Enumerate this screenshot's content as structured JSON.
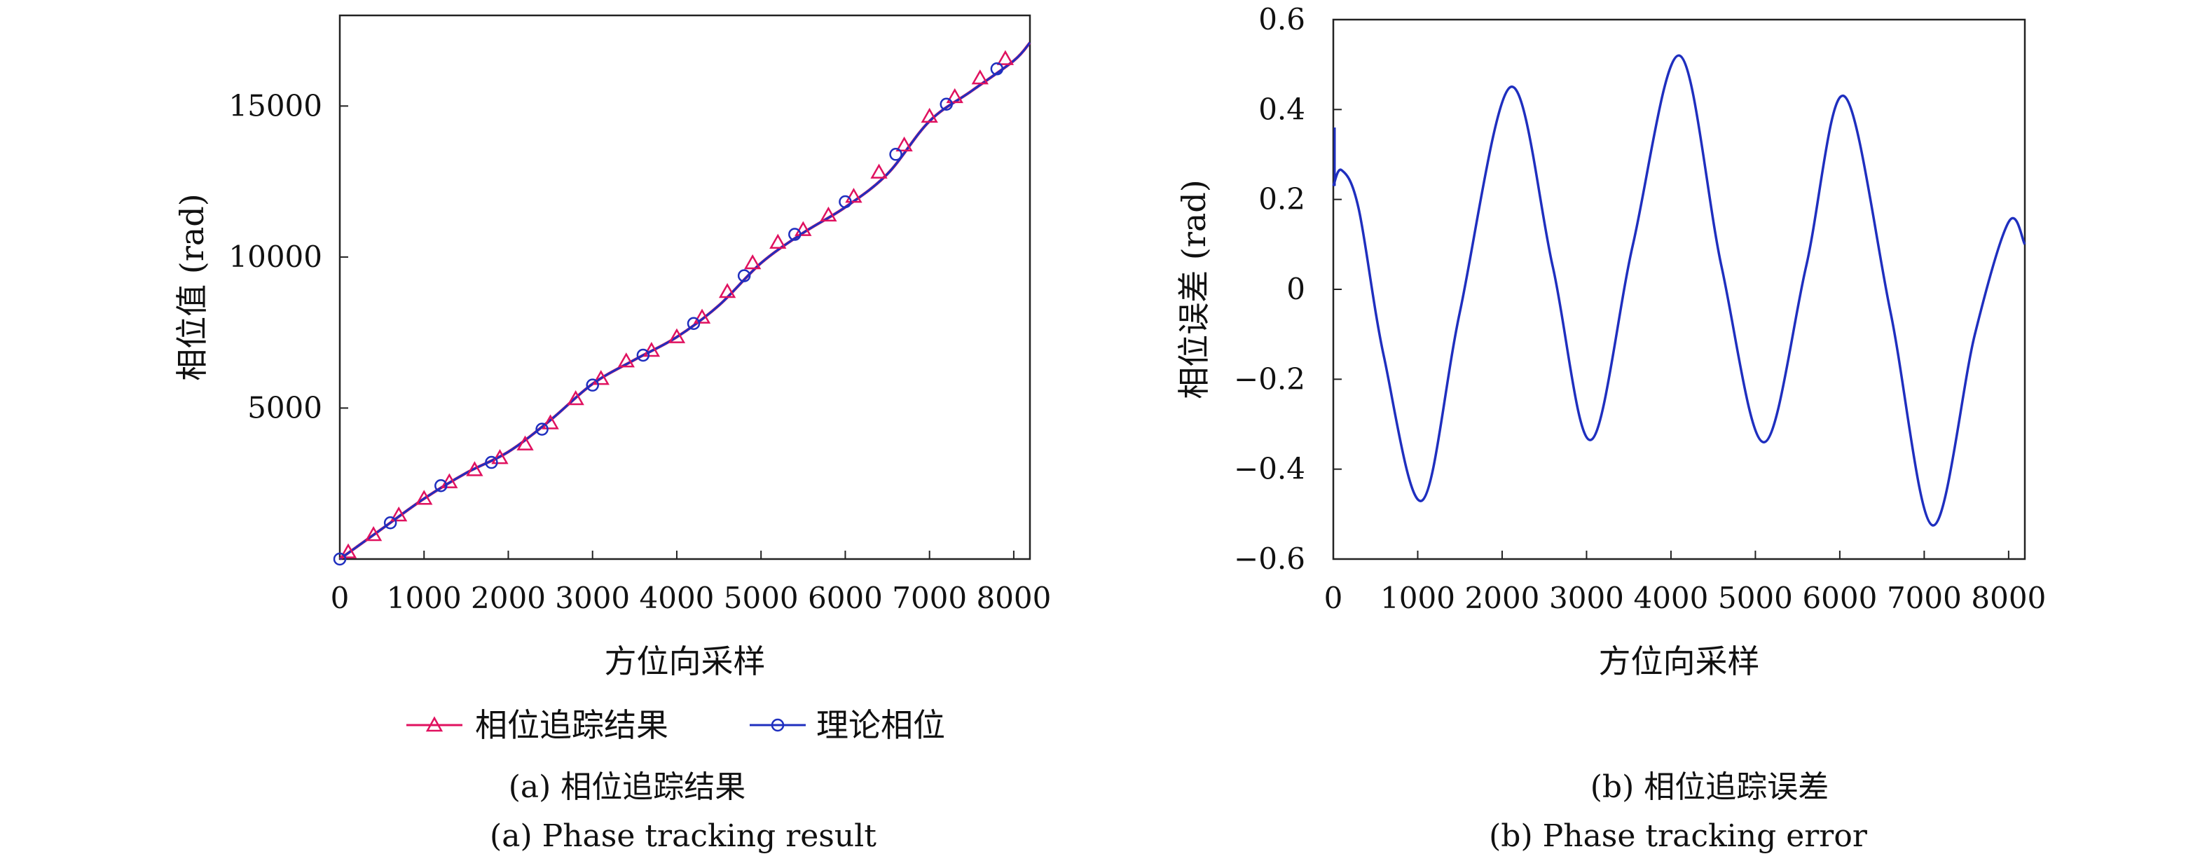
{
  "chart_data": [
    {
      "type": "line",
      "panel": "(a)",
      "xlabel": "方位向采样",
      "ylabel": "相位值 (rad)",
      "xlim": [
        0,
        8192
      ],
      "ylim": [
        0,
        18000
      ],
      "xticks": [
        0,
        1000,
        2000,
        3000,
        4000,
        5000,
        6000,
        7000,
        8000
      ],
      "xtick_labels": [
        "0",
        "1000",
        "2000",
        "3000",
        "4000",
        "5000",
        "6000",
        "7000",
        "8000"
      ],
      "yticks": [
        5000,
        10000,
        15000
      ],
      "ytick_labels": [
        "5000",
        "10000",
        "15000"
      ],
      "grid": false,
      "legend": "below",
      "series": [
        {
          "name": "相位追踪结果",
          "color": "#e0115f",
          "marker": "triangle",
          "x": [
            0,
            500,
            1000,
            1500,
            2000,
            2500,
            3000,
            3500,
            4000,
            4500,
            5000,
            5500,
            6000,
            6500,
            7000,
            7500,
            8000,
            8192
          ],
          "y": [
            0,
            1000,
            2000,
            2850,
            3550,
            4600,
            5800,
            6600,
            7350,
            8400,
            9800,
            10800,
            11650,
            12750,
            14500,
            15500,
            16500,
            17100
          ],
          "markers_x": [
            100,
            400,
            700,
            1000,
            1300,
            1600,
            1900,
            2200,
            2500,
            2800,
            3100,
            3400,
            3700,
            4000,
            4300,
            4600,
            4900,
            5200,
            5500,
            5800,
            6100,
            6400,
            6700,
            7000,
            7300,
            7600,
            7900
          ],
          "markers_y": [
            230,
            800,
            1450,
            2000,
            2550,
            2950,
            3350,
            3800,
            4500,
            5300,
            5970,
            6550,
            6900,
            7350,
            8000,
            8850,
            9800,
            10480,
            10900,
            11380,
            12000,
            12800,
            13700,
            14650,
            15300,
            15920,
            16560
          ]
        },
        {
          "name": "理论相位",
          "color": "#1f2fbf",
          "marker": "circle",
          "x": [
            0,
            500,
            1000,
            1500,
            2000,
            2500,
            3000,
            3500,
            4000,
            4500,
            5000,
            5500,
            6000,
            6500,
            7000,
            7500,
            8000,
            8192
          ],
          "y": [
            0,
            1000,
            2000,
            2850,
            3550,
            4600,
            5800,
            6600,
            7350,
            8400,
            9800,
            10800,
            11650,
            12750,
            14500,
            15500,
            16500,
            17100
          ],
          "markers_x": [
            0,
            600,
            1200,
            1800,
            2400,
            3000,
            3600,
            4200,
            4800,
            5400,
            6000,
            6600,
            7200,
            7800
          ],
          "markers_y": [
            0,
            1200,
            2430,
            3200,
            4300,
            5760,
            6750,
            7800,
            9380,
            10750,
            11830,
            13400,
            15060,
            16230
          ]
        }
      ],
      "caption_lines": [
        "(a) 相位追踪结果",
        "(a) Phase tracking result"
      ]
    },
    {
      "type": "line",
      "panel": "(b)",
      "xlabel": "方位向采样",
      "ylabel": "相位误差 (rad)",
      "xlim": [
        0,
        8192
      ],
      "ylim": [
        -0.6,
        0.6
      ],
      "xticks": [
        0,
        1000,
        2000,
        3000,
        4000,
        5000,
        6000,
        7000,
        8000
      ],
      "xtick_labels": [
        "0",
        "1000",
        "2000",
        "3000",
        "4000",
        "5000",
        "6000",
        "7000",
        "8000"
      ],
      "yticks": [
        -0.6,
        -0.4,
        -0.2,
        0,
        0.2,
        0.4,
        0.6
      ],
      "ytick_labels": [
        "−0.6",
        "−0.4",
        "−0.2",
        "0",
        "0.2",
        "0.4",
        "0.6"
      ],
      "grid": false,
      "series": [
        {
          "color": "#1f2fbf",
          "x": [
            0,
            100,
            300,
            600,
            1050,
            1500,
            2100,
            2600,
            3050,
            3550,
            4100,
            4600,
            5100,
            5600,
            6050,
            6600,
            7100,
            7600,
            8000,
            8192
          ],
          "y": [
            0.23,
            0.265,
            0.18,
            -0.15,
            -0.47,
            -0.05,
            0.45,
            0.05,
            -0.335,
            0.1,
            0.52,
            0.05,
            -0.34,
            0.05,
            0.43,
            -0.05,
            -0.525,
            -0.1,
            0.15,
            0.1
          ]
        }
      ],
      "caption_lines": [
        "(b) 相位追踪误差",
        "(b) Phase tracking error"
      ]
    }
  ]
}
